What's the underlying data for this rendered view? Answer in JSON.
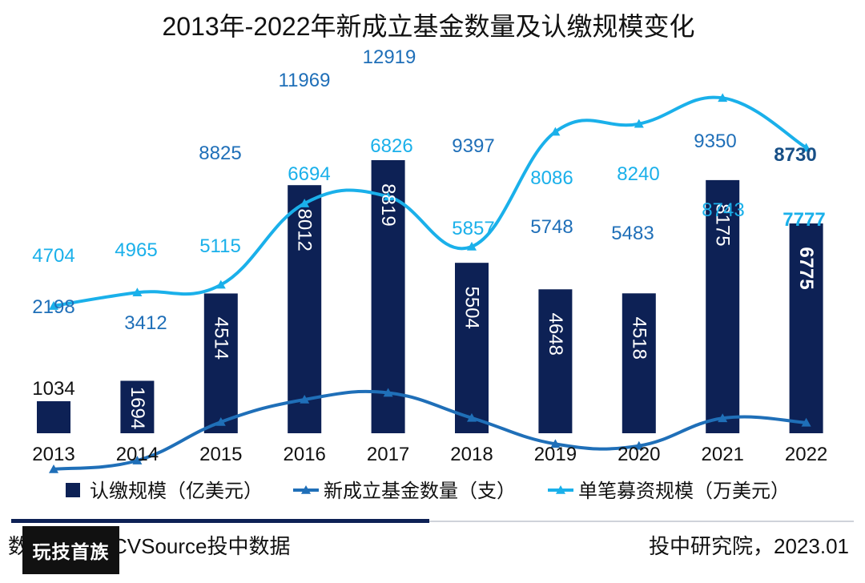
{
  "chart_data": {
    "type": "bar",
    "title": "2013年-2022年新成立基金数量及认缴规模变化",
    "categories": [
      "2013",
      "2014",
      "2015",
      "2016",
      "2017",
      "2018",
      "2019",
      "2020",
      "2021",
      "2022"
    ],
    "series": [
      {
        "name": "认缴规模（亿美元）",
        "type": "bar",
        "color": "#0d2155",
        "values": [
          1034,
          1694,
          4514,
          8012,
          8819,
          5504,
          4648,
          4518,
          8175,
          6775
        ]
      },
      {
        "name": "新成立基金数量（支）",
        "type": "line",
        "color": "#1f6fb8",
        "values": [
          2198,
          3412,
          8825,
          11969,
          12919,
          9397,
          5748,
          5483,
          9350,
          8730
        ]
      },
      {
        "name": "单笔募资规模（万美元）",
        "type": "line",
        "color": "#1ab0ea",
        "values": [
          4704,
          4965,
          5115,
          6694,
          6826,
          5857,
          8086,
          8240,
          8743,
          7777
        ]
      }
    ],
    "legend_position": "bottom",
    "grid": false
  },
  "footer": {
    "source": "数据来源：CVSource投中数据",
    "credit": "投中研究院，2023.01",
    "watermark": "玩技首族"
  }
}
